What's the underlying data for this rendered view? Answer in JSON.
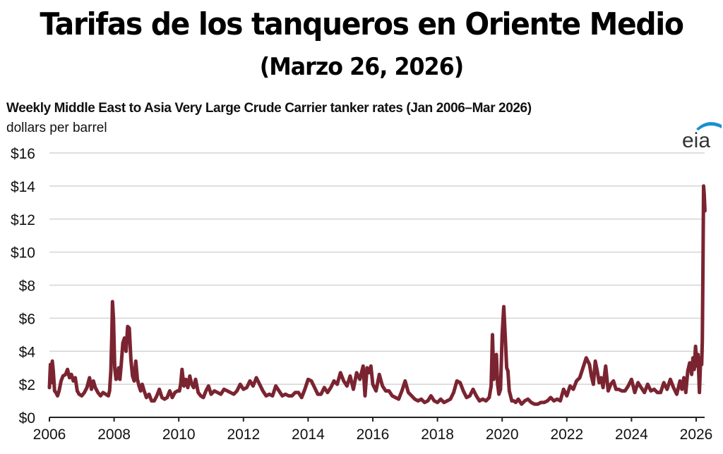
{
  "header": {
    "title": "Tarifas de los tanqueros en Oriente Medio",
    "subtitle": "(Marzo 26, 2026)"
  },
  "logo": {
    "text": "eia",
    "accent_color": "#1a8fd1"
  },
  "chart_data": {
    "type": "line",
    "title": "Weekly Middle East to Asia Very Large Crude Carrier tanker rates (Jan 2006–Mar 2026)",
    "ylabel": "dollars per barrel",
    "xlabel": "",
    "xlim": [
      2006,
      2026.27
    ],
    "ylim": [
      0,
      16
    ],
    "grid": true,
    "legend": "none",
    "y_ticks": [
      0,
      2,
      4,
      6,
      8,
      10,
      12,
      14,
      16
    ],
    "y_tick_labels": [
      "$0",
      "$2",
      "$4",
      "$6",
      "$8",
      "$10",
      "$12",
      "$14",
      "$16"
    ],
    "x_ticks": [
      2006,
      2008,
      2010,
      2012,
      2014,
      2016,
      2018,
      2020,
      2022,
      2024,
      2026
    ],
    "x_tick_labels": [
      "2006",
      "2008",
      "2010",
      "2012",
      "2014",
      "2016",
      "2018",
      "2020",
      "2022",
      "2024",
      "2026"
    ],
    "series": [
      {
        "name": "VLCC Middle East to Asia",
        "color": "#7b2431",
        "x": [
          2006.0,
          2006.03,
          2006.06,
          2006.09,
          2006.12,
          2006.16,
          2006.2,
          2006.25,
          2006.3,
          2006.36,
          2006.42,
          2006.5,
          2006.56,
          2006.62,
          2006.68,
          2006.74,
          2006.8,
          2006.86,
          2006.92,
          2007.0,
          2007.08,
          2007.16,
          2007.24,
          2007.3,
          2007.36,
          2007.42,
          2007.5,
          2007.58,
          2007.66,
          2007.74,
          2007.82,
          2007.86,
          2007.9,
          2007.93,
          2007.95,
          2007.98,
          2008.02,
          2008.06,
          2008.1,
          2008.14,
          2008.18,
          2008.22,
          2008.27,
          2008.32,
          2008.37,
          2008.42,
          2008.47,
          2008.52,
          2008.57,
          2008.62,
          2008.67,
          2008.72,
          2008.77,
          2008.82,
          2008.87,
          2008.93,
          2009.0,
          2009.08,
          2009.16,
          2009.24,
          2009.32,
          2009.4,
          2009.48,
          2009.56,
          2009.64,
          2009.72,
          2009.8,
          2009.88,
          2009.96,
          2010.02,
          2010.06,
          2010.1,
          2010.16,
          2010.22,
          2010.28,
          2010.34,
          2010.4,
          2010.46,
          2010.52,
          2010.6,
          2010.68,
          2010.76,
          2010.84,
          2010.92,
          2011.0,
          2011.1,
          2011.2,
          2011.3,
          2011.4,
          2011.5,
          2011.6,
          2011.7,
          2011.8,
          2011.9,
          2012.0,
          2012.1,
          2012.2,
          2012.3,
          2012.4,
          2012.5,
          2012.6,
          2012.7,
          2012.8,
          2012.9,
          2013.0,
          2013.1,
          2013.2,
          2013.3,
          2013.4,
          2013.5,
          2013.6,
          2013.7,
          2013.8,
          2013.9,
          2014.0,
          2014.1,
          2014.2,
          2014.3,
          2014.4,
          2014.5,
          2014.6,
          2014.7,
          2014.8,
          2014.9,
          2015.0,
          2015.1,
          2015.2,
          2015.3,
          2015.4,
          2015.5,
          2015.6,
          2015.7,
          2015.76,
          2015.82,
          2015.88,
          2015.94,
          2016.0,
          2016.1,
          2016.2,
          2016.3,
          2016.4,
          2016.5,
          2016.6,
          2016.7,
          2016.8,
          2016.9,
          2017.0,
          2017.1,
          2017.2,
          2017.3,
          2017.4,
          2017.5,
          2017.6,
          2017.7,
          2017.8,
          2017.9,
          2018.0,
          2018.1,
          2018.2,
          2018.3,
          2018.4,
          2018.5,
          2018.6,
          2018.7,
          2018.8,
          2018.9,
          2019.0,
          2019.1,
          2019.2,
          2019.3,
          2019.4,
          2019.5,
          2019.6,
          2019.66,
          2019.7,
          2019.74,
          2019.78,
          2019.82,
          2019.86,
          2019.9,
          2019.95,
          2020.0,
          2020.05,
          2020.1,
          2020.14,
          2020.18,
          2020.22,
          2020.26,
          2020.3,
          2020.36,
          2020.42,
          2020.5,
          2020.6,
          2020.7,
          2020.8,
          2020.9,
          2021.0,
          2021.1,
          2021.2,
          2021.3,
          2021.4,
          2021.5,
          2021.6,
          2021.7,
          2021.8,
          2021.9,
          2022.0,
          2022.1,
          2022.2,
          2022.3,
          2022.4,
          2022.5,
          2022.6,
          2022.7,
          2022.76,
          2022.82,
          2022.88,
          2022.94,
          2023.0,
          2023.06,
          2023.12,
          2023.2,
          2023.28,
          2023.36,
          2023.44,
          2023.52,
          2023.6,
          2023.7,
          2023.8,
          2023.9,
          2024.0,
          2024.1,
          2024.2,
          2024.3,
          2024.4,
          2024.5,
          2024.6,
          2024.7,
          2024.8,
          2024.9,
          2025.0,
          2025.1,
          2025.2,
          2025.3,
          2025.4,
          2025.5,
          2025.56,
          2025.62,
          2025.68,
          2025.74,
          2025.8,
          2025.86,
          2025.9,
          2025.94,
          2025.98,
          2026.02,
          2026.06,
          2026.1,
          2026.14,
          2026.17,
          2026.19,
          2026.21,
          2026.23,
          2026.25,
          2026.27
        ],
        "values": [
          1.8,
          3.2,
          2.1,
          3.4,
          2.8,
          1.6,
          1.5,
          1.3,
          1.6,
          2.2,
          2.5,
          2.6,
          2.9,
          2.4,
          2.6,
          2.2,
          2.4,
          1.6,
          1.4,
          1.3,
          1.5,
          1.8,
          2.4,
          1.7,
          2.2,
          1.8,
          1.5,
          1.3,
          1.5,
          1.4,
          1.3,
          1.6,
          2.8,
          5.0,
          7.0,
          6.0,
          3.0,
          2.3,
          2.4,
          3.0,
          2.3,
          3.2,
          4.5,
          4.8,
          4.0,
          5.5,
          5.4,
          3.5,
          2.5,
          2.2,
          3.4,
          2.3,
          1.9,
          1.6,
          2.0,
          1.6,
          1.2,
          1.4,
          1.0,
          1.0,
          1.3,
          1.7,
          1.2,
          1.1,
          1.2,
          1.6,
          1.2,
          1.5,
          1.6,
          1.6,
          2.0,
          2.9,
          1.9,
          2.3,
          1.8,
          2.5,
          2.0,
          1.8,
          2.3,
          1.5,
          1.3,
          1.2,
          1.6,
          1.9,
          1.4,
          1.6,
          1.5,
          1.4,
          1.7,
          1.6,
          1.5,
          1.4,
          1.6,
          2.0,
          1.7,
          1.8,
          2.2,
          1.9,
          2.4,
          2.0,
          1.6,
          1.3,
          1.4,
          1.3,
          1.9,
          1.6,
          1.3,
          1.4,
          1.3,
          1.3,
          1.5,
          1.5,
          1.2,
          1.7,
          2.3,
          2.2,
          1.8,
          1.4,
          1.4,
          1.8,
          1.5,
          1.8,
          2.2,
          2.0,
          2.7,
          2.2,
          1.9,
          2.5,
          1.7,
          2.7,
          2.3,
          3.1,
          1.3,
          3.0,
          2.7,
          3.1,
          2.0,
          1.6,
          2.6,
          1.9,
          1.6,
          1.6,
          1.3,
          1.2,
          1.1,
          1.6,
          2.2,
          1.5,
          1.3,
          1.1,
          1.0,
          1.1,
          0.9,
          1.0,
          1.3,
          1.0,
          0.9,
          1.1,
          0.9,
          1.0,
          1.1,
          1.5,
          2.2,
          2.1,
          1.6,
          1.2,
          1.3,
          1.7,
          1.3,
          1.0,
          1.1,
          1.0,
          1.2,
          1.9,
          5.0,
          2.3,
          2.8,
          3.8,
          2.0,
          1.4,
          1.7,
          5.0,
          6.7,
          4.7,
          3.0,
          2.8,
          1.6,
          1.3,
          1.0,
          1.0,
          0.9,
          1.1,
          0.8,
          1.0,
          1.1,
          0.9,
          0.8,
          0.8,
          0.9,
          0.9,
          1.0,
          1.2,
          1.0,
          1.1,
          1.0,
          1.7,
          1.3,
          1.9,
          1.7,
          2.2,
          2.4,
          3.0,
          3.6,
          3.2,
          2.5,
          2.0,
          3.4,
          2.8,
          2.1,
          2.4,
          1.8,
          3.1,
          1.6,
          2.0,
          2.2,
          1.7,
          1.7,
          1.6,
          1.6,
          1.9,
          2.3,
          1.5,
          2.1,
          1.8,
          1.5,
          2.0,
          1.6,
          1.7,
          1.5,
          1.5,
          2.1,
          1.7,
          2.3,
          1.8,
          1.4,
          2.2,
          1.7,
          2.4,
          1.5,
          2.8,
          3.3,
          2.6,
          3.6,
          2.9,
          4.3,
          3.1,
          3.8,
          1.5,
          3.6,
          3.2,
          4.6,
          9.0,
          14.0,
          13.5,
          12.5
        ]
      }
    ]
  }
}
